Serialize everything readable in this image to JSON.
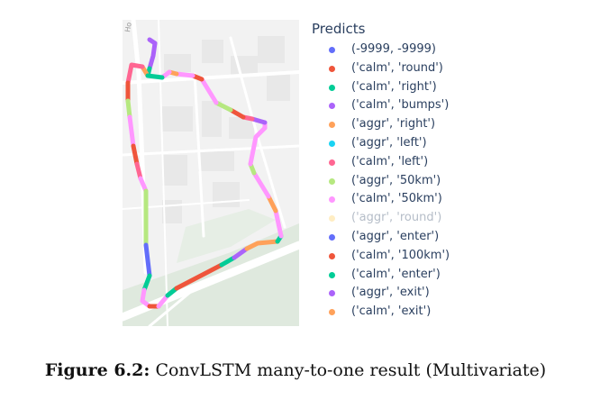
{
  "legend": {
    "title": "Predicts",
    "items": [
      {
        "label": "(-9999, -9999)",
        "color": "#636efa",
        "visible": true
      },
      {
        "label": "('calm', 'round')",
        "color": "#ef553b",
        "visible": true
      },
      {
        "label": "('calm', 'right')",
        "color": "#00cc96",
        "visible": true
      },
      {
        "label": "('calm', 'bumps')",
        "color": "#ab63fa",
        "visible": true
      },
      {
        "label": "('aggr', 'right')",
        "color": "#ffa15a",
        "visible": true
      },
      {
        "label": "('aggr', 'left')",
        "color": "#19d3f3",
        "visible": true
      },
      {
        "label": "('calm', 'left')",
        "color": "#ff6692",
        "visible": true
      },
      {
        "label": "('aggr', '50km')",
        "color": "#b6e880",
        "visible": true
      },
      {
        "label": "('calm', '50km')",
        "color": "#ff97ff",
        "visible": true
      },
      {
        "label": "('aggr', 'round')",
        "color": "#fecb52",
        "visible": false
      },
      {
        "label": "('aggr', 'enter')",
        "color": "#636efa",
        "visible": true
      },
      {
        "label": "('calm', '100km')",
        "color": "#ef553b",
        "visible": true
      },
      {
        "label": "('calm', 'enter')",
        "color": "#00cc96",
        "visible": true
      },
      {
        "label": "('aggr', 'exit')",
        "color": "#ab63fa",
        "visible": true
      },
      {
        "label": "('calm', 'exit')",
        "color": "#ffa15a",
        "visible": true
      }
    ]
  },
  "caption": {
    "label": "Figure 6.2:",
    "text": "ConvLSTM many-to-one result (Multivariate)"
  },
  "map": {
    "street_label": "Ho",
    "background_color": "#f2f2f2",
    "road_color": "#ffffff",
    "park_color": "#dfe9de"
  },
  "chart_data": {
    "type": "scatter",
    "title": "",
    "legend_title": "Predicts",
    "legend_placement": "right",
    "series_names": [
      "(-9999, -9999)",
      "('calm', 'round')",
      "('calm', 'right')",
      "('calm', 'bumps')",
      "('aggr', 'right')",
      "('aggr', 'left')",
      "('calm', 'left')",
      "('aggr', '50km')",
      "('calm', '50km')",
      "('aggr', 'round')",
      "('aggr', 'enter')",
      "('calm', '100km')",
      "('calm', 'enter')",
      "('aggr', 'exit')",
      "('calm', 'exit')"
    ],
    "hidden_series": [
      "('aggr', 'round')"
    ]
  }
}
